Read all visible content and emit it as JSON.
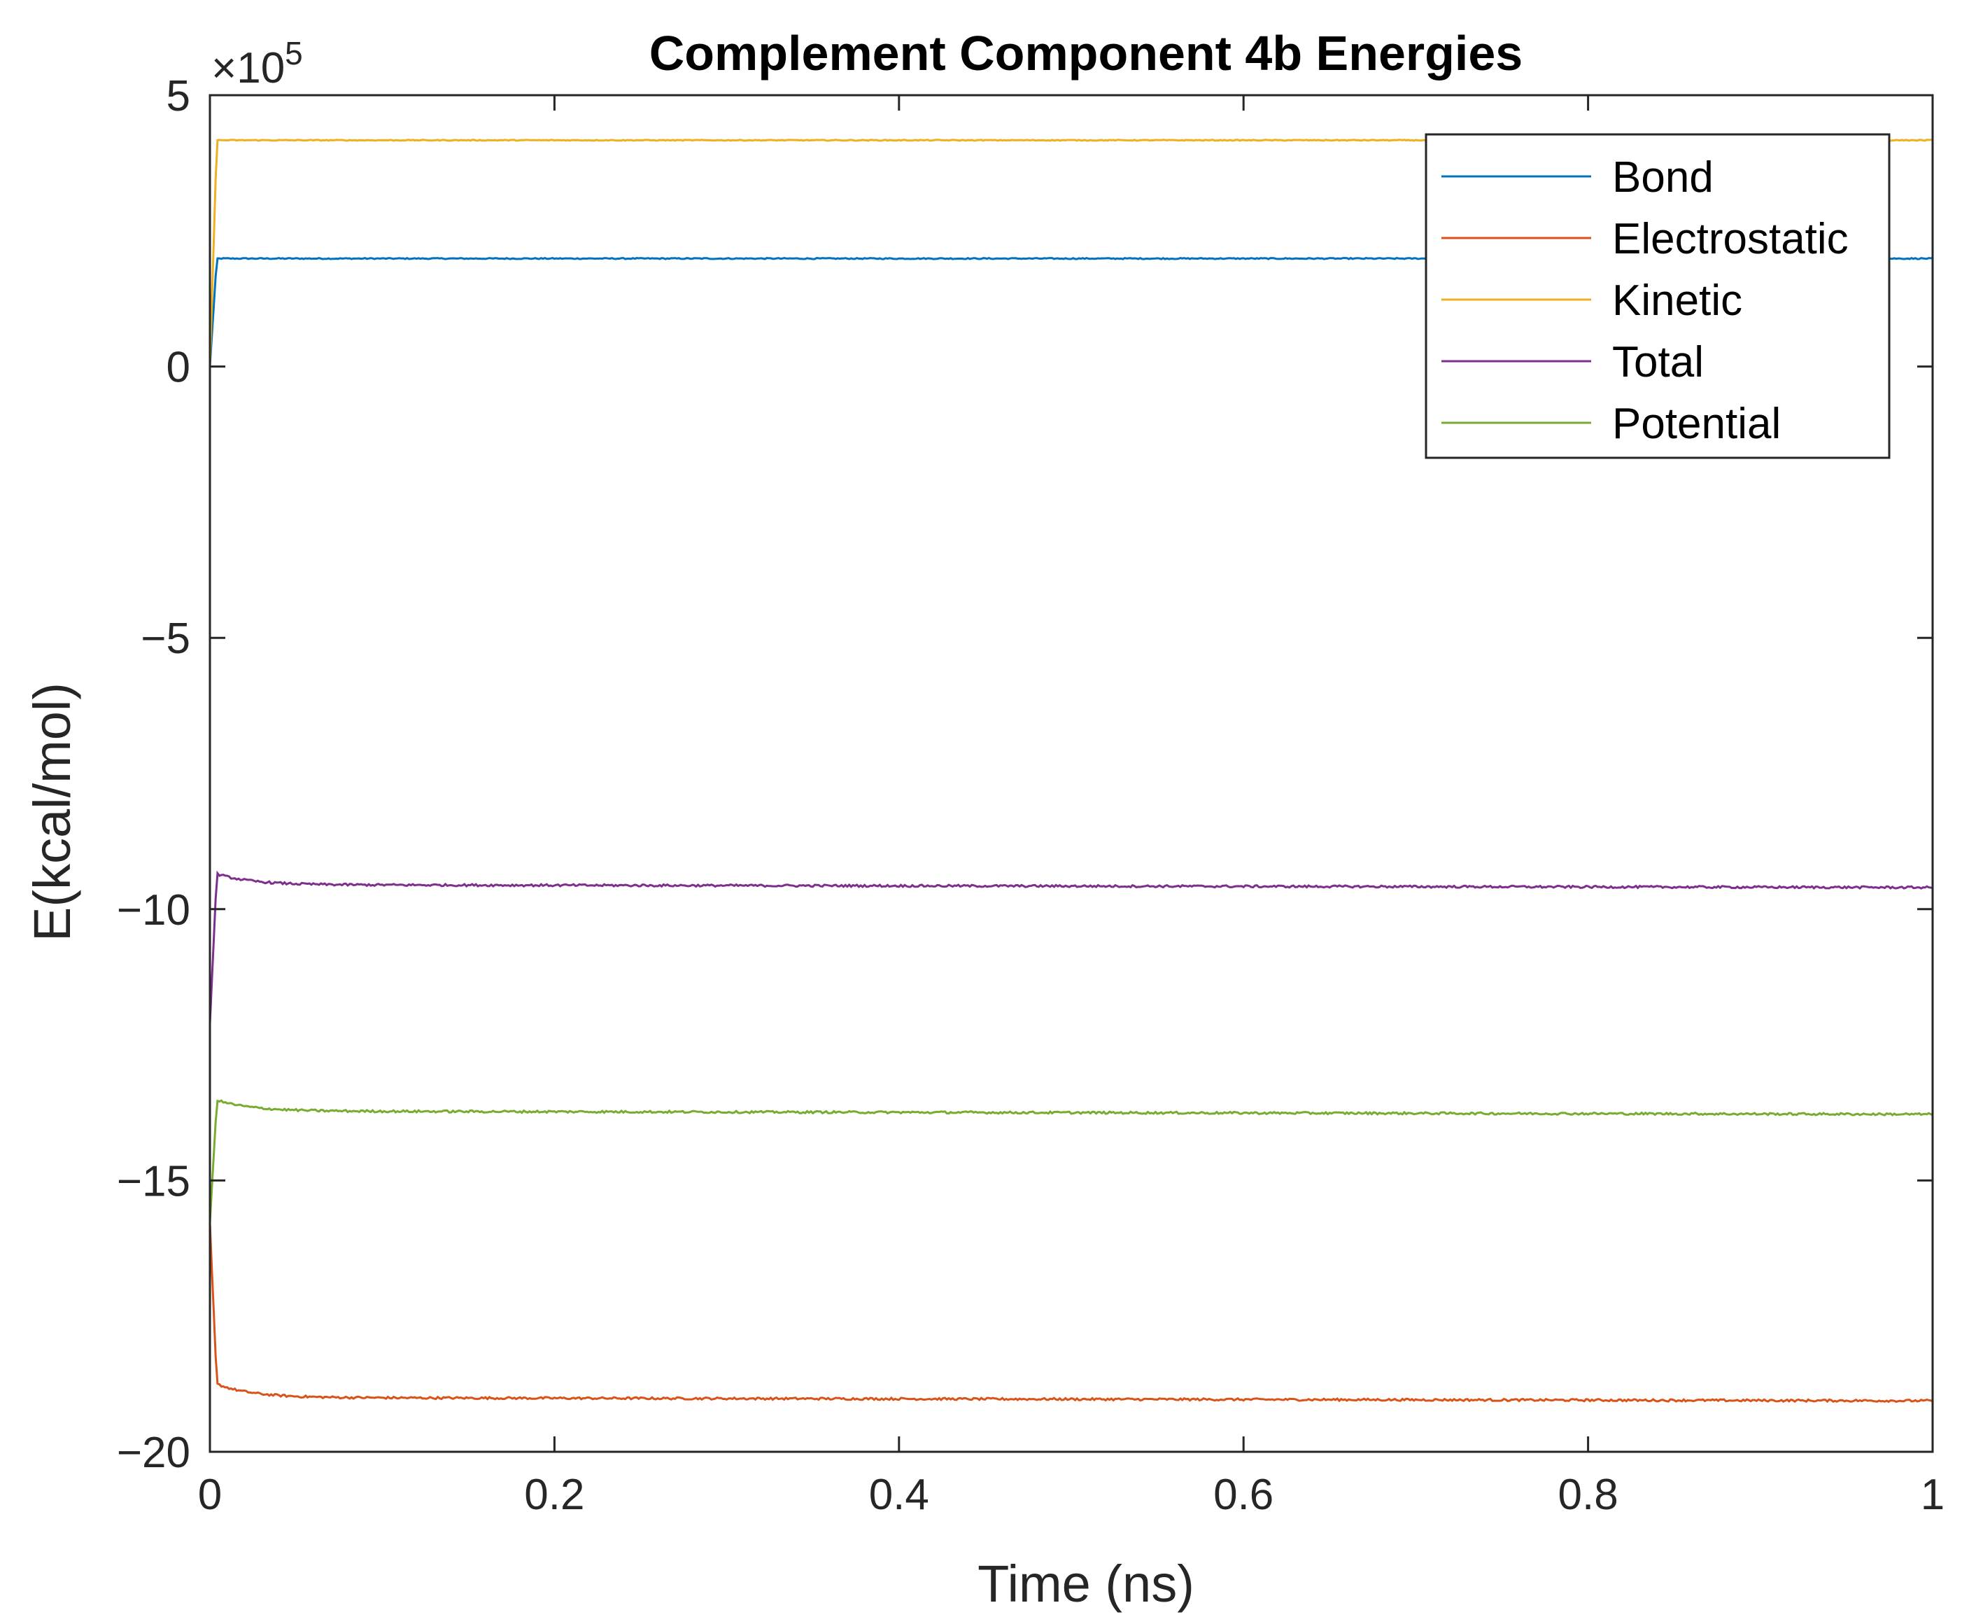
{
  "chart_data": {
    "type": "line",
    "title": "Complement Component 4b Energies",
    "xlabel": "Time (ns)",
    "ylabel": "E(kcal/mol)",
    "xlim": [
      0,
      1
    ],
    "ylim": [
      -20,
      5
    ],
    "y_exponent_multiplier": "×10",
    "y_exponent_power": "5",
    "x_ticks": [
      {
        "value": 0,
        "label": "0"
      },
      {
        "value": 0.2,
        "label": "0.2"
      },
      {
        "value": 0.4,
        "label": "0.4"
      },
      {
        "value": 0.6,
        "label": "0.6"
      },
      {
        "value": 0.8,
        "label": "0.8"
      },
      {
        "value": 1,
        "label": "1"
      }
    ],
    "y_ticks": [
      {
        "value": 5,
        "label": "5"
      },
      {
        "value": 0,
        "label": "0"
      },
      {
        "value": -5,
        "label": "−5"
      },
      {
        "value": -10,
        "label": "−10"
      },
      {
        "value": -15,
        "label": "−15"
      },
      {
        "value": -20,
        "label": "−20"
      }
    ],
    "grid": false,
    "legend_position": "top-right",
    "series": [
      {
        "name": "Bond",
        "color": "#0072BD",
        "start_value": 0.0,
        "plateau": 1.99,
        "overshoot": 0.0,
        "drift": 0.0,
        "noise": 0.01
      },
      {
        "name": "Electrostatic",
        "color": "#D95319",
        "start_value": -15.8,
        "plateau": -19.0,
        "overshoot": 0.25,
        "drift": -0.06,
        "noise": 0.02
      },
      {
        "name": "Kinetic",
        "color": "#EDB120",
        "start_value": 0.0,
        "plateau": 4.17,
        "overshoot": 0.0,
        "drift": 0.0,
        "noise": 0.008
      },
      {
        "name": "Total",
        "color": "#7E2F8E",
        "start_value": -12.1,
        "plateau": -9.55,
        "overshoot": 0.2,
        "drift": -0.05,
        "noise": 0.02
      },
      {
        "name": "Potential",
        "color": "#77AC30",
        "start_value": -15.8,
        "plateau": -13.72,
        "overshoot": 0.2,
        "drift": -0.06,
        "noise": 0.02
      }
    ]
  }
}
